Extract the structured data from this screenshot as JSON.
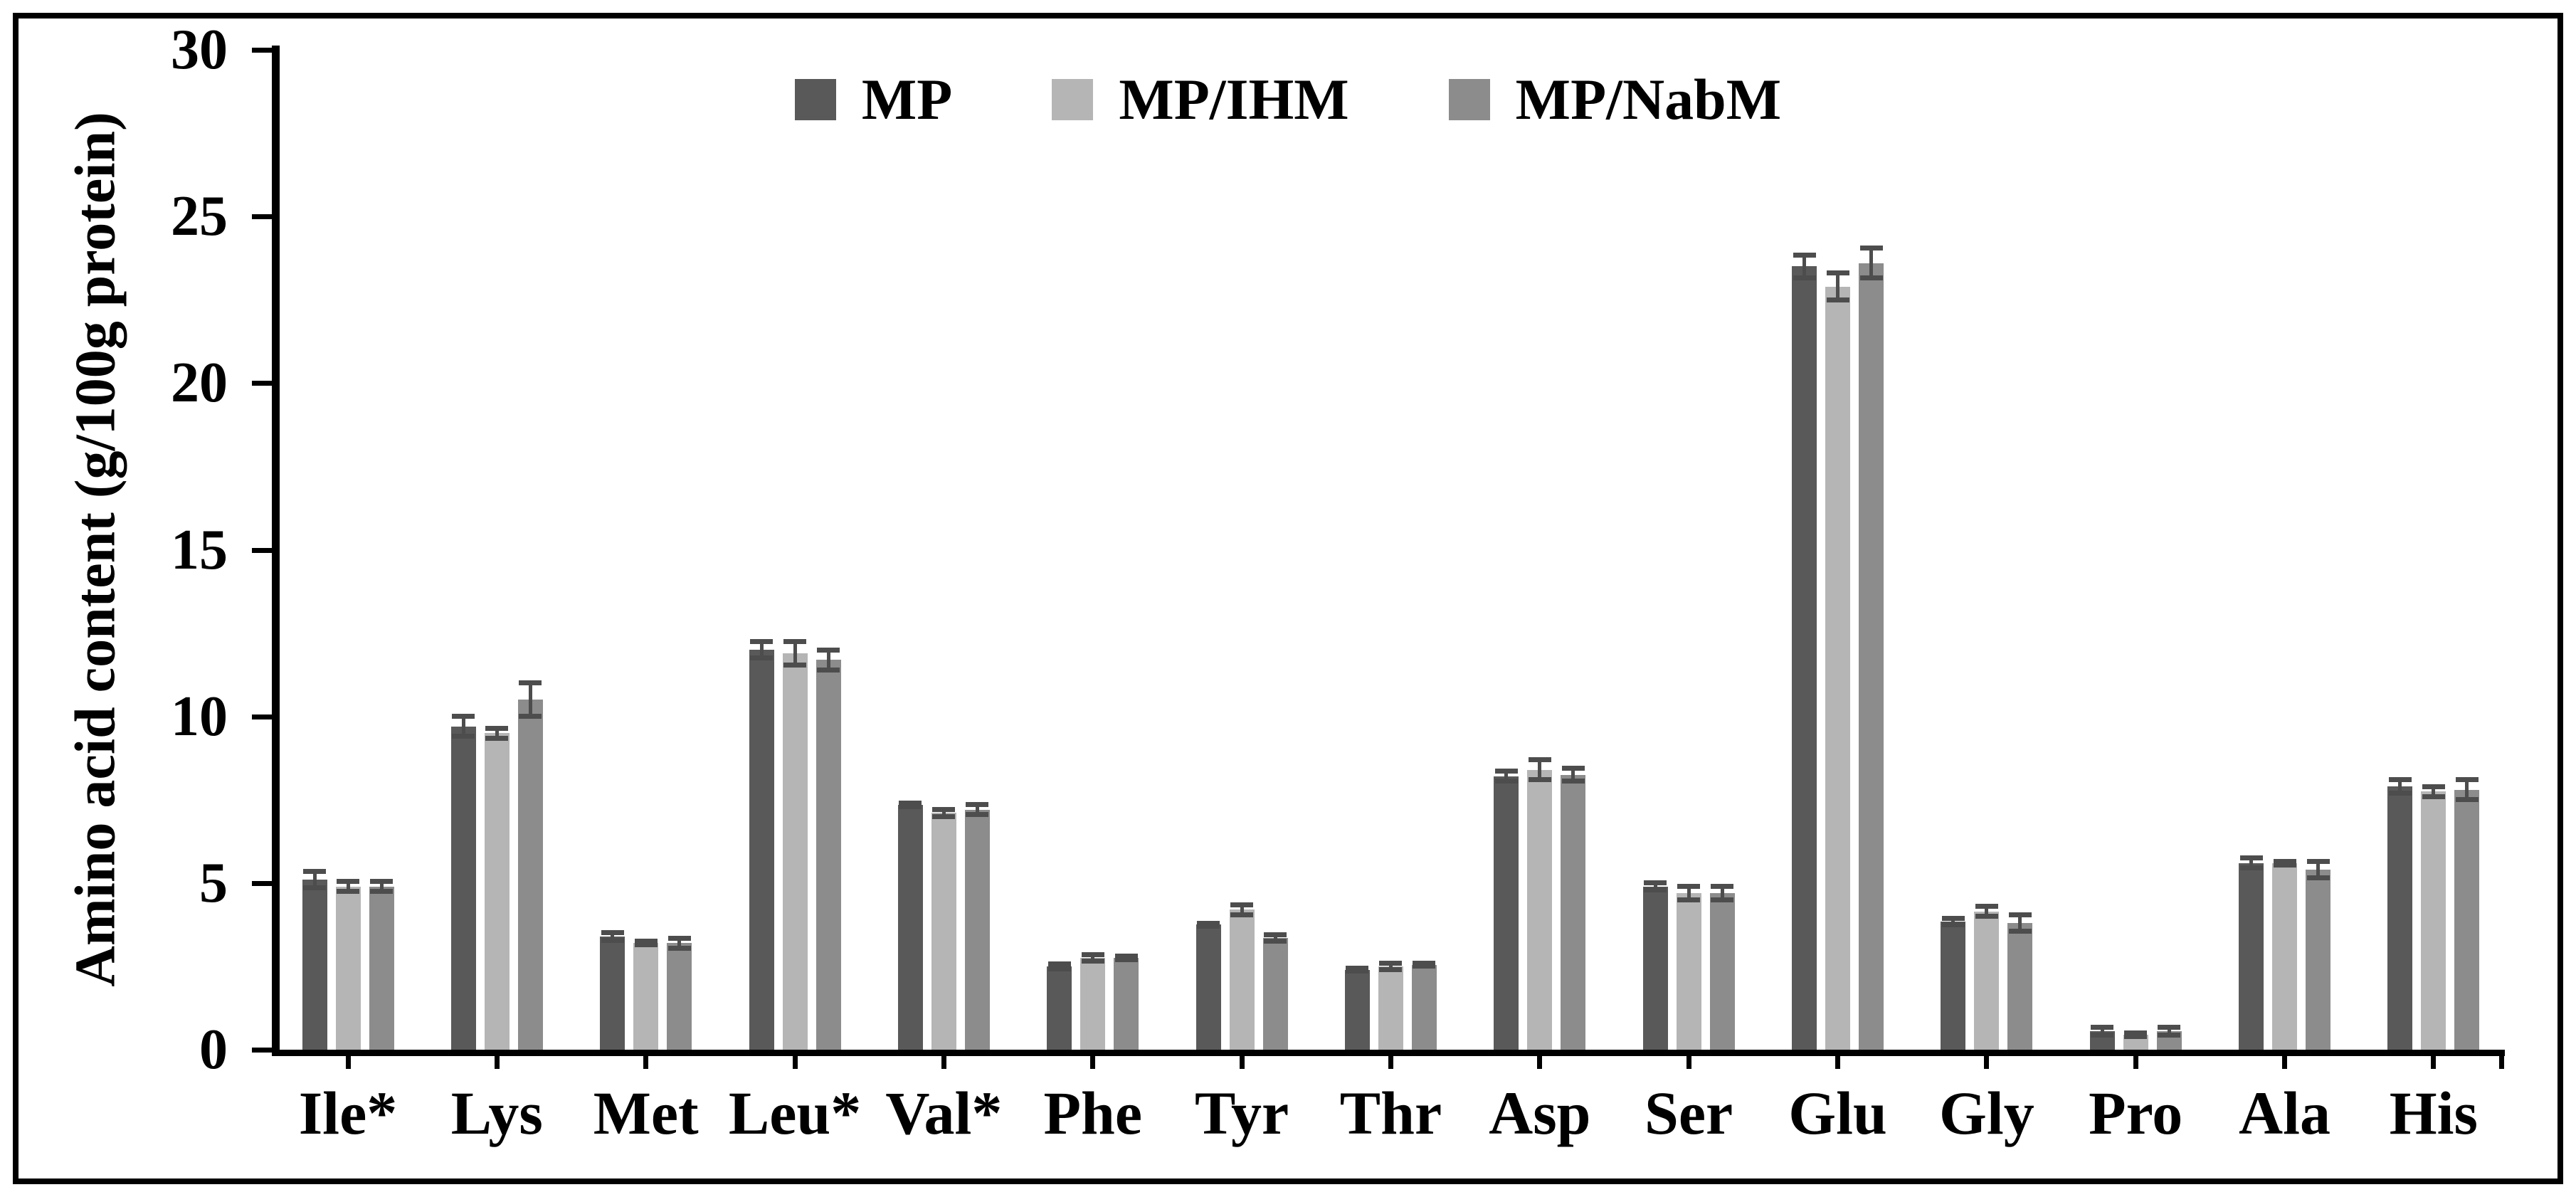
{
  "figure": {
    "background": "#ffffff",
    "border_color": "#000000"
  },
  "chart_data": {
    "type": "bar",
    "title": "",
    "xlabel": "",
    "ylabel": "Amino acid content (g/100g protein)",
    "ylim": [
      0,
      30
    ],
    "yticks": [
      0,
      5,
      10,
      15,
      20,
      25,
      30
    ],
    "grid": false,
    "legend_position": "top-center",
    "error_bar_color": "#4d4d4d",
    "axis_color": "#000000",
    "categories": [
      "Ile*",
      "Lys",
      "Met",
      "Leu*",
      "Val*",
      "Phe",
      "Tyr",
      "Thr",
      "Asp",
      "Ser",
      "Glu",
      "Gly",
      "Pro",
      "Ala",
      "His"
    ],
    "series": [
      {
        "name": "MP",
        "color": "#595959",
        "values": [
          5.1,
          9.7,
          3.4,
          12.0,
          7.35,
          2.5,
          3.75,
          2.4,
          8.2,
          4.9,
          23.5,
          3.85,
          0.55,
          5.6,
          7.9
        ],
        "errors": [
          0.25,
          0.3,
          0.12,
          0.25,
          0.05,
          0.08,
          0.05,
          0.05,
          0.15,
          0.1,
          0.35,
          0.1,
          0.12,
          0.15,
          0.2
        ]
      },
      {
        "name": "MP/IHM",
        "color": "#b5b5b5",
        "values": [
          4.9,
          9.5,
          3.2,
          11.9,
          7.1,
          2.75,
          4.2,
          2.5,
          8.4,
          4.7,
          22.9,
          4.15,
          0.45,
          5.6,
          7.75
        ],
        "errors": [
          0.15,
          0.15,
          0.05,
          0.35,
          0.1,
          0.1,
          0.15,
          0.1,
          0.3,
          0.2,
          0.4,
          0.15,
          0.05,
          0.05,
          0.15
        ]
      },
      {
        "name": "MP/NabM",
        "color": "#8c8c8c",
        "values": [
          4.9,
          10.5,
          3.2,
          11.7,
          7.2,
          2.75,
          3.35,
          2.55,
          8.25,
          4.7,
          23.6,
          3.8,
          0.55,
          5.4,
          7.8
        ],
        "errors": [
          0.15,
          0.5,
          0.15,
          0.3,
          0.15,
          0.05,
          0.1,
          0.05,
          0.2,
          0.2,
          0.45,
          0.25,
          0.12,
          0.25,
          0.3
        ]
      }
    ]
  }
}
